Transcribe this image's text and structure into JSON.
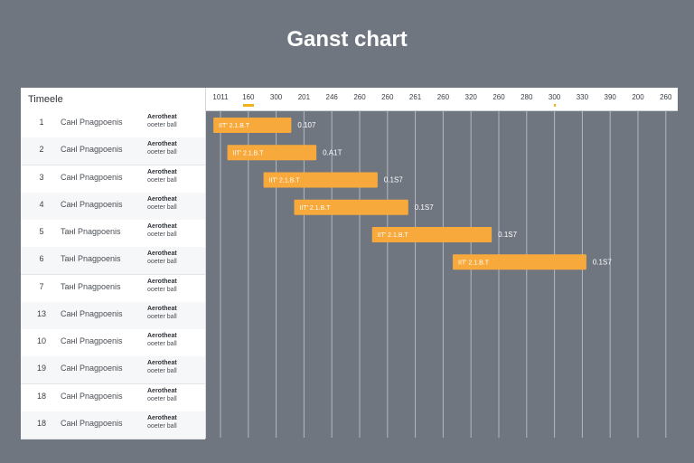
{
  "chart_data": {
    "type": "gantt",
    "title": "Ganst chart",
    "left_header": "Timeele",
    "scale_ticks": [
      "1011",
      "160",
      "300",
      "201",
      "246",
      "260",
      "260",
      "261",
      "260",
      "320",
      "260",
      "280",
      "300",
      "330",
      "390",
      "200",
      "260"
    ],
    "markers": [
      1,
      12
    ],
    "bar_color": "#f8a93c",
    "marker_color": "#f2b21c",
    "tasks": [
      {
        "num": "1",
        "name": "Caнl Pnagpoenis",
        "meta1": "Aerotheat",
        "meta2": "ooeter ball",
        "start": 0.2,
        "end": 3.0,
        "bar_label": "IIT′ 2.1.B.T",
        "end_label": "0.107"
      },
      {
        "num": "2",
        "name": "Caнl Pnagpoenis",
        "meta1": "Aerotheat",
        "meta2": "ooeter ball",
        "start": 0.7,
        "end": 3.9,
        "bar_label": "IIT′ 2.1.B.T",
        "end_label": "0.A1T"
      },
      {
        "num": "3",
        "name": "Caнl Pnagpoenis",
        "meta1": "Aerotheat",
        "meta2": "ooeter ball",
        "start": 2.0,
        "end": 6.1,
        "bar_label": "IIT′ 2.1.B.T",
        "end_label": "0.1S7"
      },
      {
        "num": "4",
        "name": "Caнl Pnagpoenis",
        "meta1": "Aerotheat",
        "meta2": "ooeter ball",
        "start": 3.1,
        "end": 7.2,
        "bar_label": "IIT′ 2.1.B.T",
        "end_label": "0.1S7"
      },
      {
        "num": "5",
        "name": "Taнl Pnagpoenis",
        "meta1": "Aerotheat",
        "meta2": "ooeter ball",
        "start": 5.9,
        "end": 10.2,
        "bar_label": "IIT′ 2.1.B.T",
        "end_label": "0.1S7"
      },
      {
        "num": "6",
        "name": "Taнl Pnagpoenis",
        "meta1": "Aerotheat",
        "meta2": "ooeter ball",
        "start": 8.8,
        "end": 13.6,
        "bar_label": "IIT′ 2.1.B.T",
        "end_label": "0.1S7"
      },
      {
        "num": "7",
        "name": "Taнl Pnagpoenis",
        "meta1": "Aerotheat",
        "meta2": "ooeter ball"
      },
      {
        "num": "13",
        "name": "Caнl Pnagpoenis",
        "meta1": "Aerotheat",
        "meta2": "ooeter ball"
      },
      {
        "num": "10",
        "name": "Caнl Pnagpoenis",
        "meta1": "Aerotheat",
        "meta2": "ooeter ball"
      },
      {
        "num": "19",
        "name": "Caнl Pnagpoenis",
        "meta1": "Aerotheat",
        "meta2": "ooeter ball"
      },
      {
        "num": "18",
        "name": "Caнl Pnagpoenis",
        "meta1": "Aerotheat",
        "meta2": "ooeter ball"
      },
      {
        "num": "18",
        "name": "Caнl Pnagpoenis",
        "meta1": "Aerotheat",
        "meta2": "ooeter ball"
      }
    ]
  }
}
